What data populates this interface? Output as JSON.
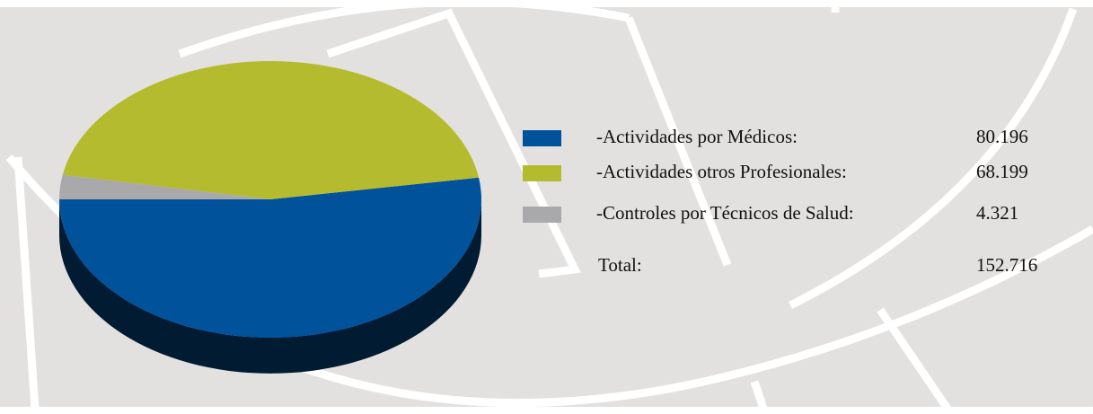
{
  "chart_data": {
    "type": "pie",
    "categories": [
      "-Actividades por Médicos:",
      "-Actividades otros Profesionales:",
      "-Controles por Técnicos de Salud:"
    ],
    "values": [
      80196,
      68199,
      4321
    ],
    "value_labels": [
      "80.196",
      "68.199",
      "4.321"
    ],
    "colors": [
      "#00539b",
      "#b5bb2f",
      "#a9a9ab"
    ],
    "total": {
      "label": "Total:",
      "value": 152716,
      "value_label": "152.716"
    }
  }
}
